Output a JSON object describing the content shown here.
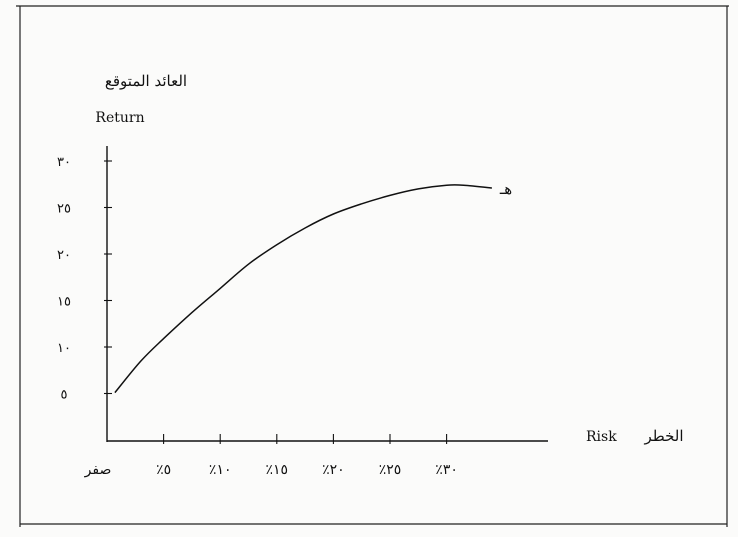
{
  "chart_data": {
    "type": "line",
    "ylabel_ar": "العائد المتوقع",
    "ylabel": "Return",
    "xlabel": "Risk",
    "xlabel_ar": "الخطر",
    "x_ticks": [
      "صفر",
      "٪٥",
      "٪١٠",
      "٪١٥",
      "٪٢٠",
      "٪٢٥",
      "٪٣٠"
    ],
    "x_tick_values": [
      0,
      5,
      10,
      15,
      20,
      25,
      30
    ],
    "y_ticks": [
      "٥",
      "١٠",
      "١٥",
      "٢٠",
      "٢٥",
      "٣٠"
    ],
    "y_tick_values": [
      5,
      10,
      15,
      20,
      25,
      30
    ],
    "xlim": [
      0,
      40
    ],
    "ylim": [
      0,
      30
    ],
    "grid": false,
    "point_label": "هـ",
    "series": [
      {
        "x": [
          0.7,
          3,
          5,
          7.5,
          10,
          12.5,
          15,
          17.5,
          20,
          22.5,
          25,
          27.5,
          30,
          31.5,
          34
        ],
        "y": [
          5.1,
          8.5,
          10.9,
          13.7,
          16.3,
          18.9,
          21.0,
          22.8,
          24.3,
          25.4,
          26.3,
          27.0,
          27.4,
          27.4,
          27.1
        ]
      }
    ]
  }
}
